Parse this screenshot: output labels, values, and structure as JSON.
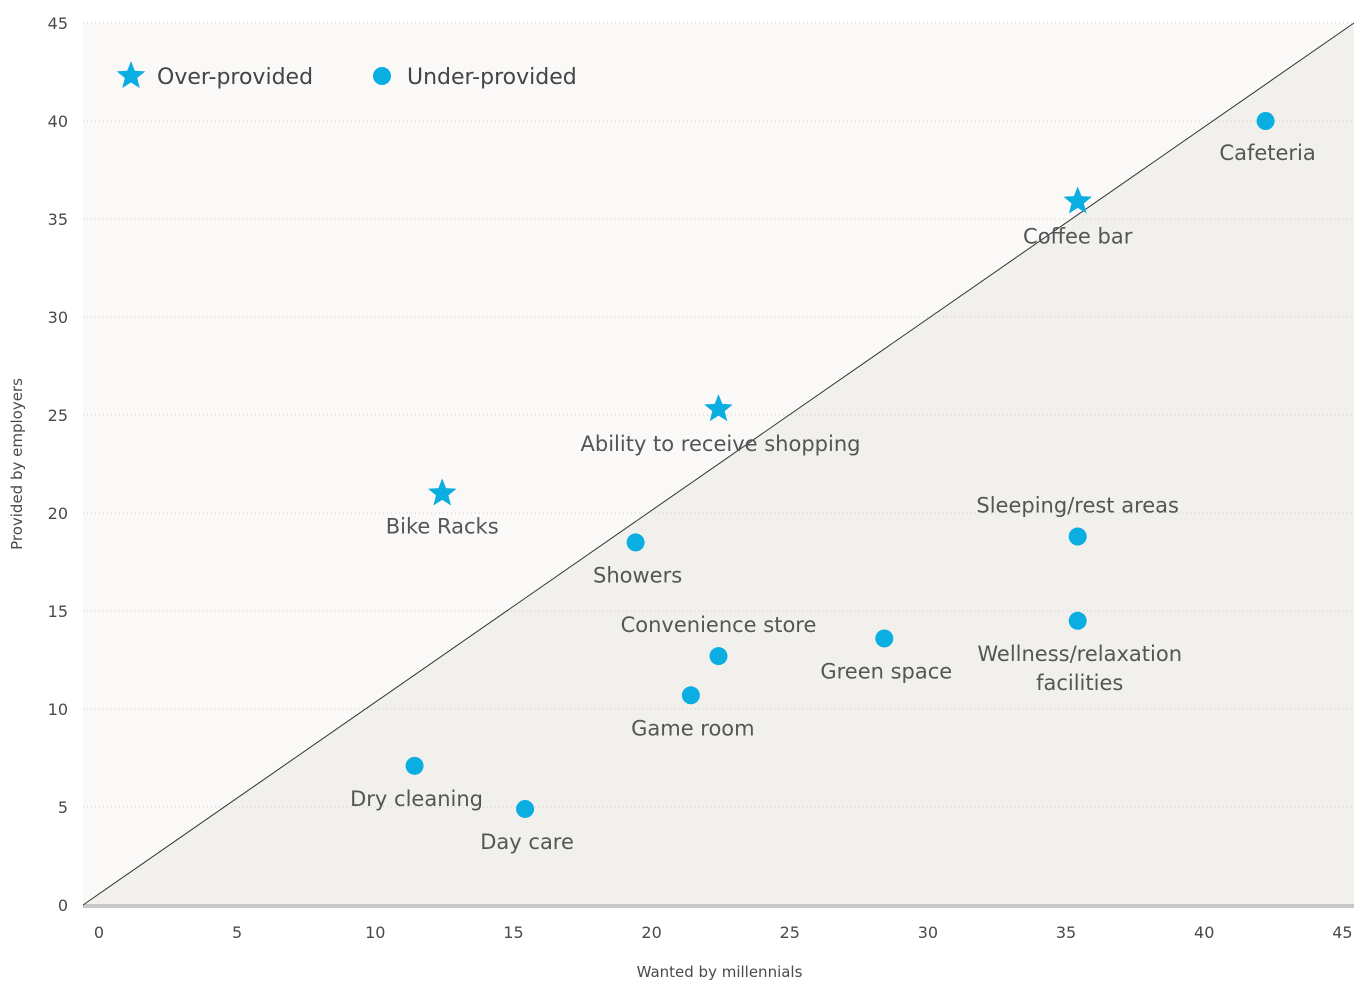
{
  "chart_data": {
    "type": "scatter",
    "xlabel": "Wanted by millennials",
    "ylabel": "Provided by employers",
    "xlim": [
      0,
      46
    ],
    "ylim": [
      0,
      45
    ],
    "xticks": [
      0,
      5,
      10,
      15,
      20,
      25,
      30,
      35,
      40,
      45
    ],
    "yticks": [
      0,
      5,
      10,
      15,
      20,
      25,
      30,
      35,
      40,
      45
    ],
    "grid": "horizontal dotted",
    "reference_line": "diagonal y = x",
    "legend": {
      "position": "top-left",
      "entries": [
        {
          "label": "Over-provided",
          "marker": "star"
        },
        {
          "label": "Under-provided",
          "marker": "circle"
        }
      ]
    },
    "marker_color": "#0aaee0",
    "region_fill": "#f1f0ec",
    "series": [
      {
        "name": "Over-provided",
        "marker": "star",
        "points": [
          {
            "label": "Bike Racks",
            "x": 13,
            "y": 21
          },
          {
            "label": "Ability to receive shopping",
            "x": 23,
            "y": 25.3
          },
          {
            "label": "Coffee bar",
            "x": 36,
            "y": 35.9
          }
        ]
      },
      {
        "name": "Under-provided",
        "marker": "circle",
        "points": [
          {
            "label": "Cafeteria",
            "x": 42.8,
            "y": 40
          },
          {
            "label": "Sleeping/rest areas",
            "x": 36,
            "y": 18.8
          },
          {
            "label": "Showers",
            "x": 20,
            "y": 18.5
          },
          {
            "label": "Wellness/relaxation facilities",
            "x": 36,
            "y": 14.5
          },
          {
            "label": "Green space",
            "x": 29,
            "y": 13.6
          },
          {
            "label": "Convenience store",
            "x": 23,
            "y": 12.7
          },
          {
            "label": "Game room",
            "x": 22,
            "y": 10.7
          },
          {
            "label": "Dry cleaning",
            "x": 12,
            "y": 7.1
          },
          {
            "label": "Day care",
            "x": 16,
            "y": 4.9
          }
        ]
      }
    ]
  }
}
